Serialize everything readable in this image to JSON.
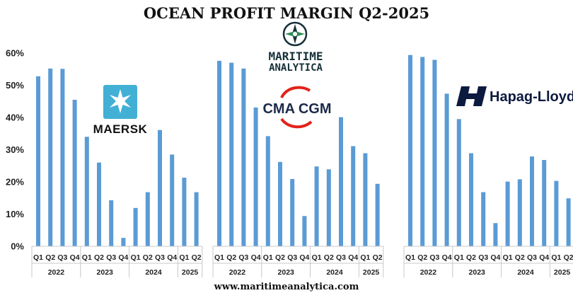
{
  "chart_data": {
    "type": "bar",
    "title": "OCEAN PROFIT MARGIN Q2-2025",
    "ylim": [
      0,
      60
    ],
    "yticks": [
      "0%",
      "10%",
      "20%",
      "30%",
      "40%",
      "50%",
      "60%"
    ],
    "quarter_labels": [
      "Q1",
      "Q2",
      "Q3",
      "Q4",
      "Q1",
      "Q2",
      "Q3",
      "Q4",
      "Q1",
      "Q2",
      "Q3",
      "Q4",
      "Q1",
      "Q2"
    ],
    "year_groups": [
      {
        "year": "2022",
        "count": 4
      },
      {
        "year": "2023",
        "count": 4
      },
      {
        "year": "2024",
        "count": 4
      },
      {
        "year": "2025",
        "count": 2
      }
    ],
    "series": [
      {
        "name": "MAERSK",
        "values": [
          52.8,
          55.2,
          55.1,
          45.5,
          34,
          26,
          14.3,
          2.6,
          11.9,
          16.8,
          36.1,
          28.5,
          21.3,
          16.8
        ]
      },
      {
        "name": "CMA CGM",
        "values": [
          57.6,
          57,
          55.2,
          43.1,
          34.2,
          26.2,
          20.9,
          9.4,
          24.8,
          23.9,
          40.1,
          31.1,
          28.9,
          19.4
        ]
      },
      {
        "name": "Hapag-Lloyd",
        "values": [
          59.4,
          58.8,
          57.9,
          47.4,
          39.5,
          28.9,
          16.8,
          7.2,
          20.1,
          20.8,
          27.9,
          26.8,
          20.3,
          14.9
        ]
      }
    ]
  },
  "logos": {
    "maersk": "MAERSK",
    "cma_cgm": "CMA CGM",
    "hapag_lloyd": "Hapag-Lloyd",
    "maritime_line1": "MARITIME",
    "maritime_line2": "ANALYTICA"
  },
  "footer": "www.maritimeanalytica.com",
  "colors": {
    "bar": "#5b9bd5",
    "maersk_blue": "#42b0d5",
    "cma_red": "#e2231a",
    "hapag_orange": "#e25a2c"
  }
}
